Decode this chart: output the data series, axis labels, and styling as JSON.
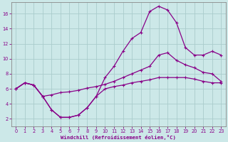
{
  "xlabel": "Windchill (Refroidissement éolien,°C)",
  "bg_color": "#cce8e8",
  "grid_color": "#aacccc",
  "line_color": "#880088",
  "xlim": [
    -0.5,
    23.5
  ],
  "ylim": [
    1,
    17.5
  ],
  "xticks": [
    0,
    1,
    2,
    3,
    4,
    5,
    6,
    7,
    8,
    9,
    10,
    11,
    12,
    13,
    14,
    15,
    16,
    17,
    18,
    19,
    20,
    21,
    22,
    23
  ],
  "yticks": [
    2,
    4,
    6,
    8,
    10,
    12,
    14,
    16
  ],
  "line_peak_x": [
    0,
    1,
    2,
    3,
    4,
    5,
    6,
    7,
    8,
    9,
    10,
    11,
    12,
    13,
    14,
    15,
    16,
    17,
    18,
    19,
    20,
    21,
    22,
    23
  ],
  "line_peak_y": [
    6.0,
    6.8,
    6.5,
    5.0,
    3.2,
    2.2,
    2.2,
    2.5,
    3.5,
    5.0,
    7.5,
    9.0,
    11.0,
    12.7,
    13.5,
    16.3,
    17.0,
    16.5,
    14.8,
    11.5,
    10.5,
    10.5,
    11.0,
    10.5
  ],
  "line_mid_x": [
    0,
    1,
    2,
    3,
    4,
    5,
    6,
    7,
    8,
    9,
    10,
    11,
    12,
    13,
    14,
    15,
    16,
    17,
    18,
    19,
    20,
    21,
    22,
    23
  ],
  "line_mid_y": [
    6.0,
    6.8,
    6.5,
    5.0,
    5.2,
    5.5,
    5.6,
    5.8,
    6.1,
    6.3,
    6.6,
    7.0,
    7.5,
    8.0,
    8.5,
    9.0,
    10.5,
    10.8,
    9.8,
    9.2,
    8.8,
    8.2,
    8.0,
    7.0
  ],
  "line_flat_x": [
    0,
    1,
    2,
    3,
    4,
    5,
    6,
    7,
    8,
    9,
    10,
    11,
    12,
    13,
    14,
    15,
    16,
    17,
    18,
    19,
    20,
    21,
    22,
    23
  ],
  "line_flat_y": [
    6.0,
    6.8,
    6.5,
    5.0,
    3.2,
    2.2,
    2.2,
    2.5,
    3.5,
    5.0,
    6.0,
    6.3,
    6.5,
    6.8,
    7.0,
    7.2,
    7.5,
    7.5,
    7.5,
    7.5,
    7.3,
    7.0,
    6.8,
    6.8
  ]
}
